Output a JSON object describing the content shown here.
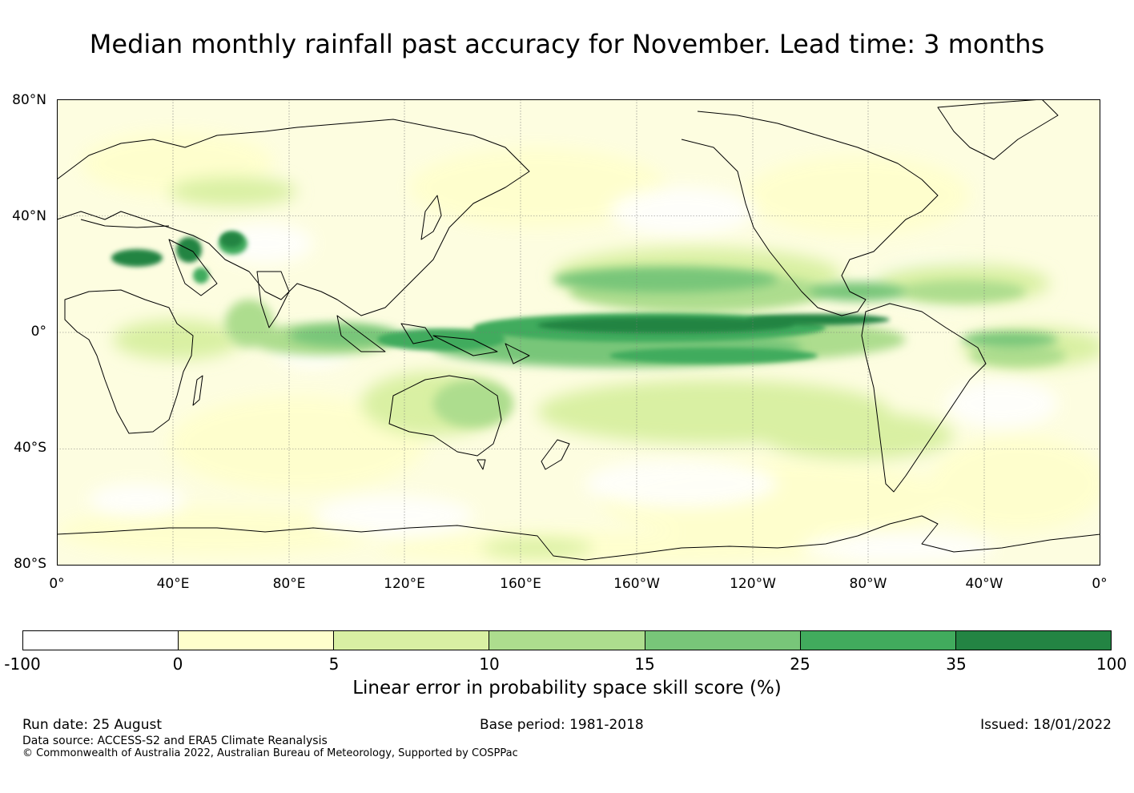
{
  "title": "Median monthly rainfall past accuracy for November. Lead time: 3 months",
  "map": {
    "lat_labels": [
      "80°N",
      "40°N",
      "0°",
      "40°S",
      "80°S"
    ],
    "lon_labels": [
      "0°",
      "40°E",
      "80°E",
      "120°E",
      "160°E",
      "160°W",
      "120°W",
      "80°W",
      "40°W",
      "0°"
    ],
    "land_outline_color": "#000000",
    "grid": true
  },
  "legend": {
    "label": "Linear error in probability space skill score (%)",
    "ticks": [
      "-100",
      "0",
      "5",
      "10",
      "15",
      "25",
      "35",
      "100"
    ],
    "colors": [
      "#ffffff",
      "#ffffcc",
      "#d9f0a3",
      "#addd8e",
      "#78c679",
      "#41ab5d",
      "#238443"
    ]
  },
  "footer": {
    "run_date": "Run date: 25 August",
    "base_period": "Base period: 1981-2018",
    "issued": "Issued: 18/01/2022",
    "data_source": "Data source: ACCESS-S2 and ERA5 Climate Reanalysis",
    "copyright": "© Commonwealth of Australia 2022, Australian Bureau of Meteorology, Supported by COSPPac"
  }
}
